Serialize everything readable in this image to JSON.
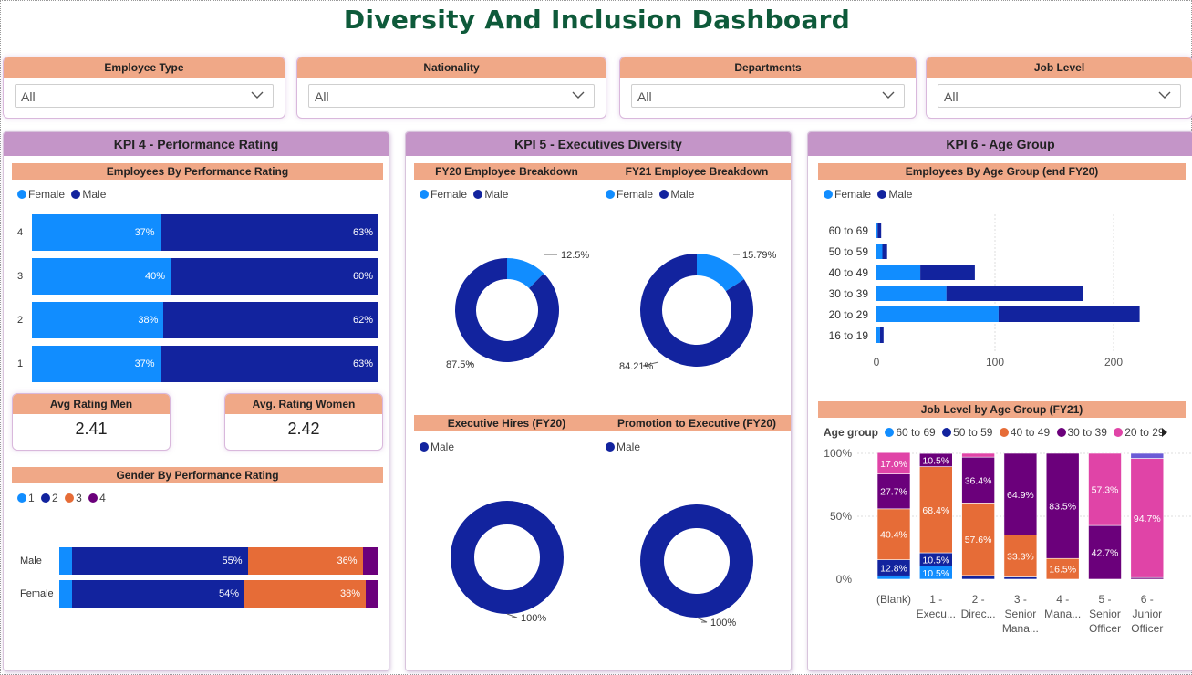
{
  "title": "Diversity And Inclusion Dashboard",
  "slicers": [
    {
      "label": "Employee Type",
      "value": "All"
    },
    {
      "label": "Nationality",
      "value": "All"
    },
    {
      "label": "Departments",
      "value": "All"
    },
    {
      "label": "Job Level",
      "value": "All"
    }
  ],
  "colors": {
    "female": "#118dff",
    "male": "#12239e",
    "orange": "#e66c37",
    "purple": "#6b007b",
    "pink": "#e044a7",
    "header": "#f0a887",
    "panel": "#c495c8",
    "title": "#0e5a3a"
  },
  "kpi4": {
    "title": "KPI 4 - Performance Rating",
    "perf_title": "Employees By Performance Rating",
    "legend": [
      "Female",
      "Male"
    ],
    "avg_men_label": "Avg Rating Men",
    "avg_men_value": "2.41",
    "avg_women_label": "Avg. Rating Women",
    "avg_women_value": "2.42",
    "gender_title": "Gender By Performance Rating",
    "gender_legend": [
      "1",
      "2",
      "3",
      "4"
    ]
  },
  "kpi5": {
    "title": "KPI 5 - Executives Diversity",
    "fy20_title": "FY20 Employee Breakdown",
    "fy21_title": "FY21 Employee Breakdown",
    "hires_title": "Executive Hires (FY20)",
    "promo_title": "Promotion to Executive (FY20)",
    "legend": [
      "Female",
      "Male"
    ],
    "legend_male": "Male"
  },
  "kpi6": {
    "title": "KPI 6 - Age Group",
    "age_title": "Employees By Age Group (end FY20)",
    "legend": [
      "Female",
      "Male"
    ],
    "job_title": "Job Level by Age Group (FY21)",
    "job_legend_title": "Age group",
    "job_legend": [
      "60 to 69",
      "50 to 59",
      "40 to 49",
      "30 to 39",
      "20 to 29"
    ]
  },
  "chart_data": [
    {
      "type": "bar",
      "orientation": "horizontal-stacked-100",
      "title": "Employees By Performance Rating",
      "categories": [
        "4",
        "3",
        "2",
        "1"
      ],
      "series": [
        {
          "name": "Female",
          "values": [
            37,
            40,
            38,
            37
          ],
          "labels": [
            "37%",
            "40%",
            "38%",
            "37%"
          ]
        },
        {
          "name": "Male",
          "values": [
            63,
            60,
            62,
            63
          ],
          "labels": [
            "63%",
            "60%",
            "62%",
            "63%"
          ]
        }
      ]
    },
    {
      "type": "bar",
      "orientation": "horizontal-stacked-100",
      "title": "Gender By Performance Rating",
      "categories": [
        "Male",
        "Female"
      ],
      "series": [
        {
          "name": "1",
          "values": [
            4,
            4
          ],
          "labels": [
            "",
            ""
          ]
        },
        {
          "name": "2",
          "values": [
            55,
            54
          ],
          "labels": [
            "55%",
            "54%"
          ]
        },
        {
          "name": "3",
          "values": [
            36,
            38
          ],
          "labels": [
            "36%",
            "38%"
          ]
        },
        {
          "name": "4",
          "values": [
            5,
            4
          ],
          "labels": [
            "",
            ""
          ]
        }
      ]
    },
    {
      "type": "pie",
      "variant": "donut",
      "title": "FY20 Employee Breakdown",
      "slices": [
        {
          "name": "Female",
          "value": 12.5,
          "label": "12.5%"
        },
        {
          "name": "Male",
          "value": 87.5,
          "label": "87.5%"
        }
      ]
    },
    {
      "type": "pie",
      "variant": "donut",
      "title": "FY21 Employee Breakdown",
      "slices": [
        {
          "name": "Female",
          "value": 15.79,
          "label": "15.79%"
        },
        {
          "name": "Male",
          "value": 84.21,
          "label": "84.21%"
        }
      ]
    },
    {
      "type": "pie",
      "variant": "donut",
      "title": "Executive Hires (FY20)",
      "slices": [
        {
          "name": "Male",
          "value": 100,
          "label": "100%"
        }
      ]
    },
    {
      "type": "pie",
      "variant": "donut",
      "title": "Promotion to Executive (FY20)",
      "slices": [
        {
          "name": "Male",
          "value": 100,
          "label": "100%"
        }
      ]
    },
    {
      "type": "bar",
      "orientation": "horizontal-stacked",
      "title": "Employees By Age Group (end FY20)",
      "categories": [
        "60 to 69",
        "50 to 59",
        "40 to 49",
        "30 to 39",
        "20 to 29",
        "16 to 19"
      ],
      "series": [
        {
          "name": "Female",
          "values": [
            1,
            5,
            37,
            59,
            103,
            3
          ]
        },
        {
          "name": "Male",
          "values": [
            3,
            4,
            46,
            115,
            119,
            3
          ]
        }
      ],
      "xticks": [
        "0",
        "100",
        "200"
      ],
      "xlim": [
        0,
        260
      ]
    },
    {
      "type": "bar",
      "orientation": "vertical-stacked-100",
      "title": "Job Level by Age Group (FY21)",
      "categories": [
        "(Blank)",
        "1 - Execu...",
        "2 - Direc...",
        "3 - Senior Mana...",
        "4 - Mana...",
        "5 - Senior Officer",
        "6 - Junior Officer"
      ],
      "series": [
        {
          "name": "60 to 69",
          "values": [
            2.7,
            10.5,
            0,
            0,
            0,
            0,
            0
          ],
          "labels": [
            "",
            "10.5%",
            "",
            "",
            "",
            "",
            ""
          ]
        },
        {
          "name": "50 to 59",
          "values": [
            12.8,
            10.5,
            3,
            1.8,
            0,
            0,
            0
          ],
          "labels": [
            "12.8%",
            "10.5%",
            "",
            "",
            "",
            "",
            ""
          ]
        },
        {
          "name": "40 to 49",
          "values": [
            40.4,
            68.4,
            57.6,
            33.3,
            16.5,
            0,
            0
          ],
          "labels": [
            "40.4%",
            "68.4%",
            "57.6%",
            "33.3%",
            "16.5%",
            "",
            ""
          ]
        },
        {
          "name": "30 to 39",
          "values": [
            27.7,
            10.5,
            36.4,
            64.9,
            83.5,
            42.7,
            1.3
          ],
          "labels": [
            "27.7%",
            "10.5%",
            "36.4%",
            "64.9%",
            "83.5%",
            "42.7%",
            ""
          ]
        },
        {
          "name": "20 to 29",
          "values": [
            17.0,
            0,
            3.0,
            0,
            0,
            57.3,
            94.7
          ],
          "labels": [
            "17.0%",
            "",
            "",
            "",
            "",
            "57.3%",
            "94.7%"
          ]
        },
        {
          "name": "16 to 19",
          "values": [
            0,
            0,
            0,
            0,
            0,
            0,
            4.0
          ],
          "labels": [
            "",
            "",
            "",
            "",
            "",
            "",
            ""
          ]
        }
      ],
      "yticks": [
        "100%",
        "50%",
        "0%"
      ],
      "ylim": [
        0,
        100
      ]
    }
  ]
}
